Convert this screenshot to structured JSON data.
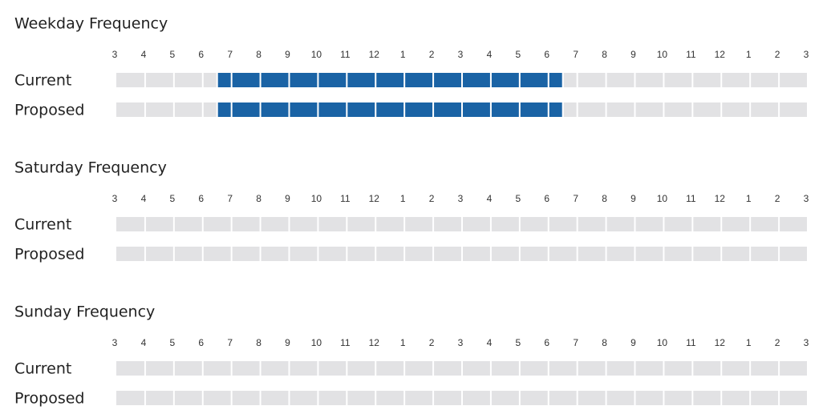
{
  "hours": [
    "3",
    "4",
    "5",
    "6",
    "7",
    "8",
    "9",
    "10",
    "11",
    "12",
    "1",
    "2",
    "3",
    "4",
    "5",
    "6",
    "7",
    "8",
    "9",
    "10",
    "11",
    "12",
    "1",
    "2",
    "3"
  ],
  "sections": [
    {
      "title": "Weekday Frequency",
      "rows": [
        {
          "label": "Current",
          "active": [
            3.5,
            15.5
          ]
        },
        {
          "label": "Proposed",
          "active": [
            3.5,
            15.5
          ]
        }
      ]
    },
    {
      "title": "Saturday Frequency",
      "rows": [
        {
          "label": "Current",
          "active": null
        },
        {
          "label": "Proposed",
          "active": null
        }
      ]
    },
    {
      "title": "Sunday Frequency",
      "rows": [
        {
          "label": "Current",
          "active": null
        },
        {
          "label": "Proposed",
          "active": null
        }
      ]
    }
  ],
  "colors": {
    "active": "#1a63a5",
    "inactive": "#e2e2e4"
  }
}
